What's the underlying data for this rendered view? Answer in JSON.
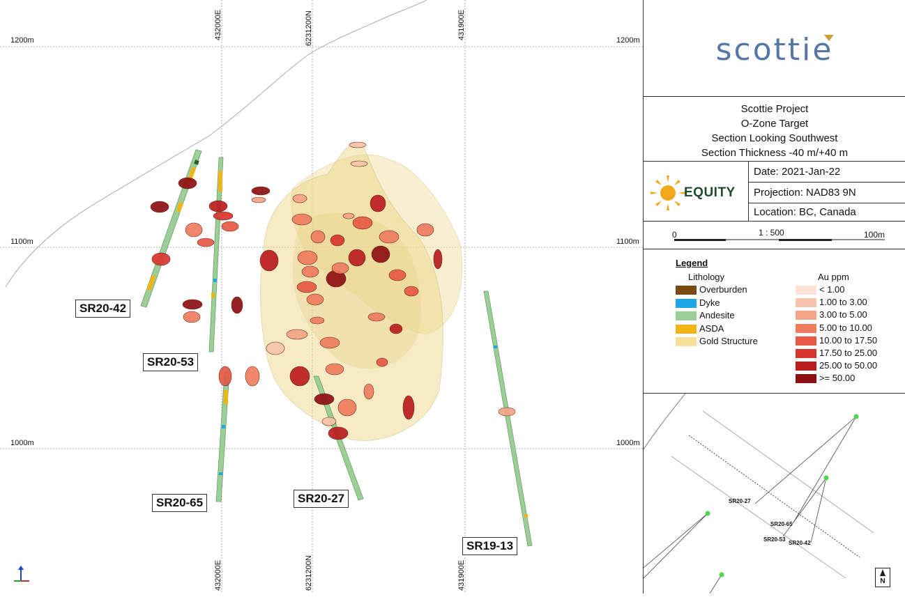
{
  "section": {
    "elevations": [
      "1200m",
      "1100m",
      "1000m"
    ],
    "coords": [
      "432000E",
      "6231200N",
      "431900E"
    ],
    "holes": [
      "SR20-42",
      "SR20-53",
      "SR20-65",
      "SR20-27",
      "SR19-13"
    ]
  },
  "panel": {
    "logo": "scottie",
    "title_lines": [
      "Scottie Project",
      "O-Zone Target",
      "Section Looking Southwest",
      "Section Thickness -40 m/+40 m"
    ],
    "company": "EQUITY",
    "date": "Date: 2021-Jan-22",
    "projection": "Projection: NAD83 9N",
    "location": "Location: BC, Canada",
    "scale": {
      "start": "0",
      "ratio": "1 : 500",
      "end": "100m"
    },
    "legend": {
      "title": "Legend",
      "lithology_title": "Lithology",
      "lithology": [
        {
          "label": "Overburden",
          "color": "#7a4a12"
        },
        {
          "label": "Dyke",
          "color": "#1ea7e8"
        },
        {
          "label": "Andesite",
          "color": "#9ccf97"
        },
        {
          "label": "ASDA",
          "color": "#f2b416"
        },
        {
          "label": "Gold Structure",
          "color": "#f7e09a"
        }
      ],
      "au_title": "Au ppm",
      "au": [
        {
          "label": "< 1.00",
          "color": "#fbe3d8"
        },
        {
          "label": "1.00 to 3.00",
          "color": "#f6c3ac"
        },
        {
          "label": "3.00 to 5.00",
          "color": "#f4a487"
        },
        {
          "label": "5.00 to 10.00",
          "color": "#ef7d5e"
        },
        {
          "label": "10.00 to 17.50",
          "color": "#e75a44"
        },
        {
          "label": "17.50 to 25.00",
          "color": "#d9352e"
        },
        {
          "label": "25.00 to 50.00",
          "color": "#bb1d1f"
        },
        {
          "label": ">= 50.00",
          "color": "#8e0f12"
        }
      ]
    },
    "inset": {
      "labels": [
        "SR20-27",
        "SR20-65",
        "SR20-53",
        "SR20-42"
      ],
      "north": "N"
    }
  }
}
